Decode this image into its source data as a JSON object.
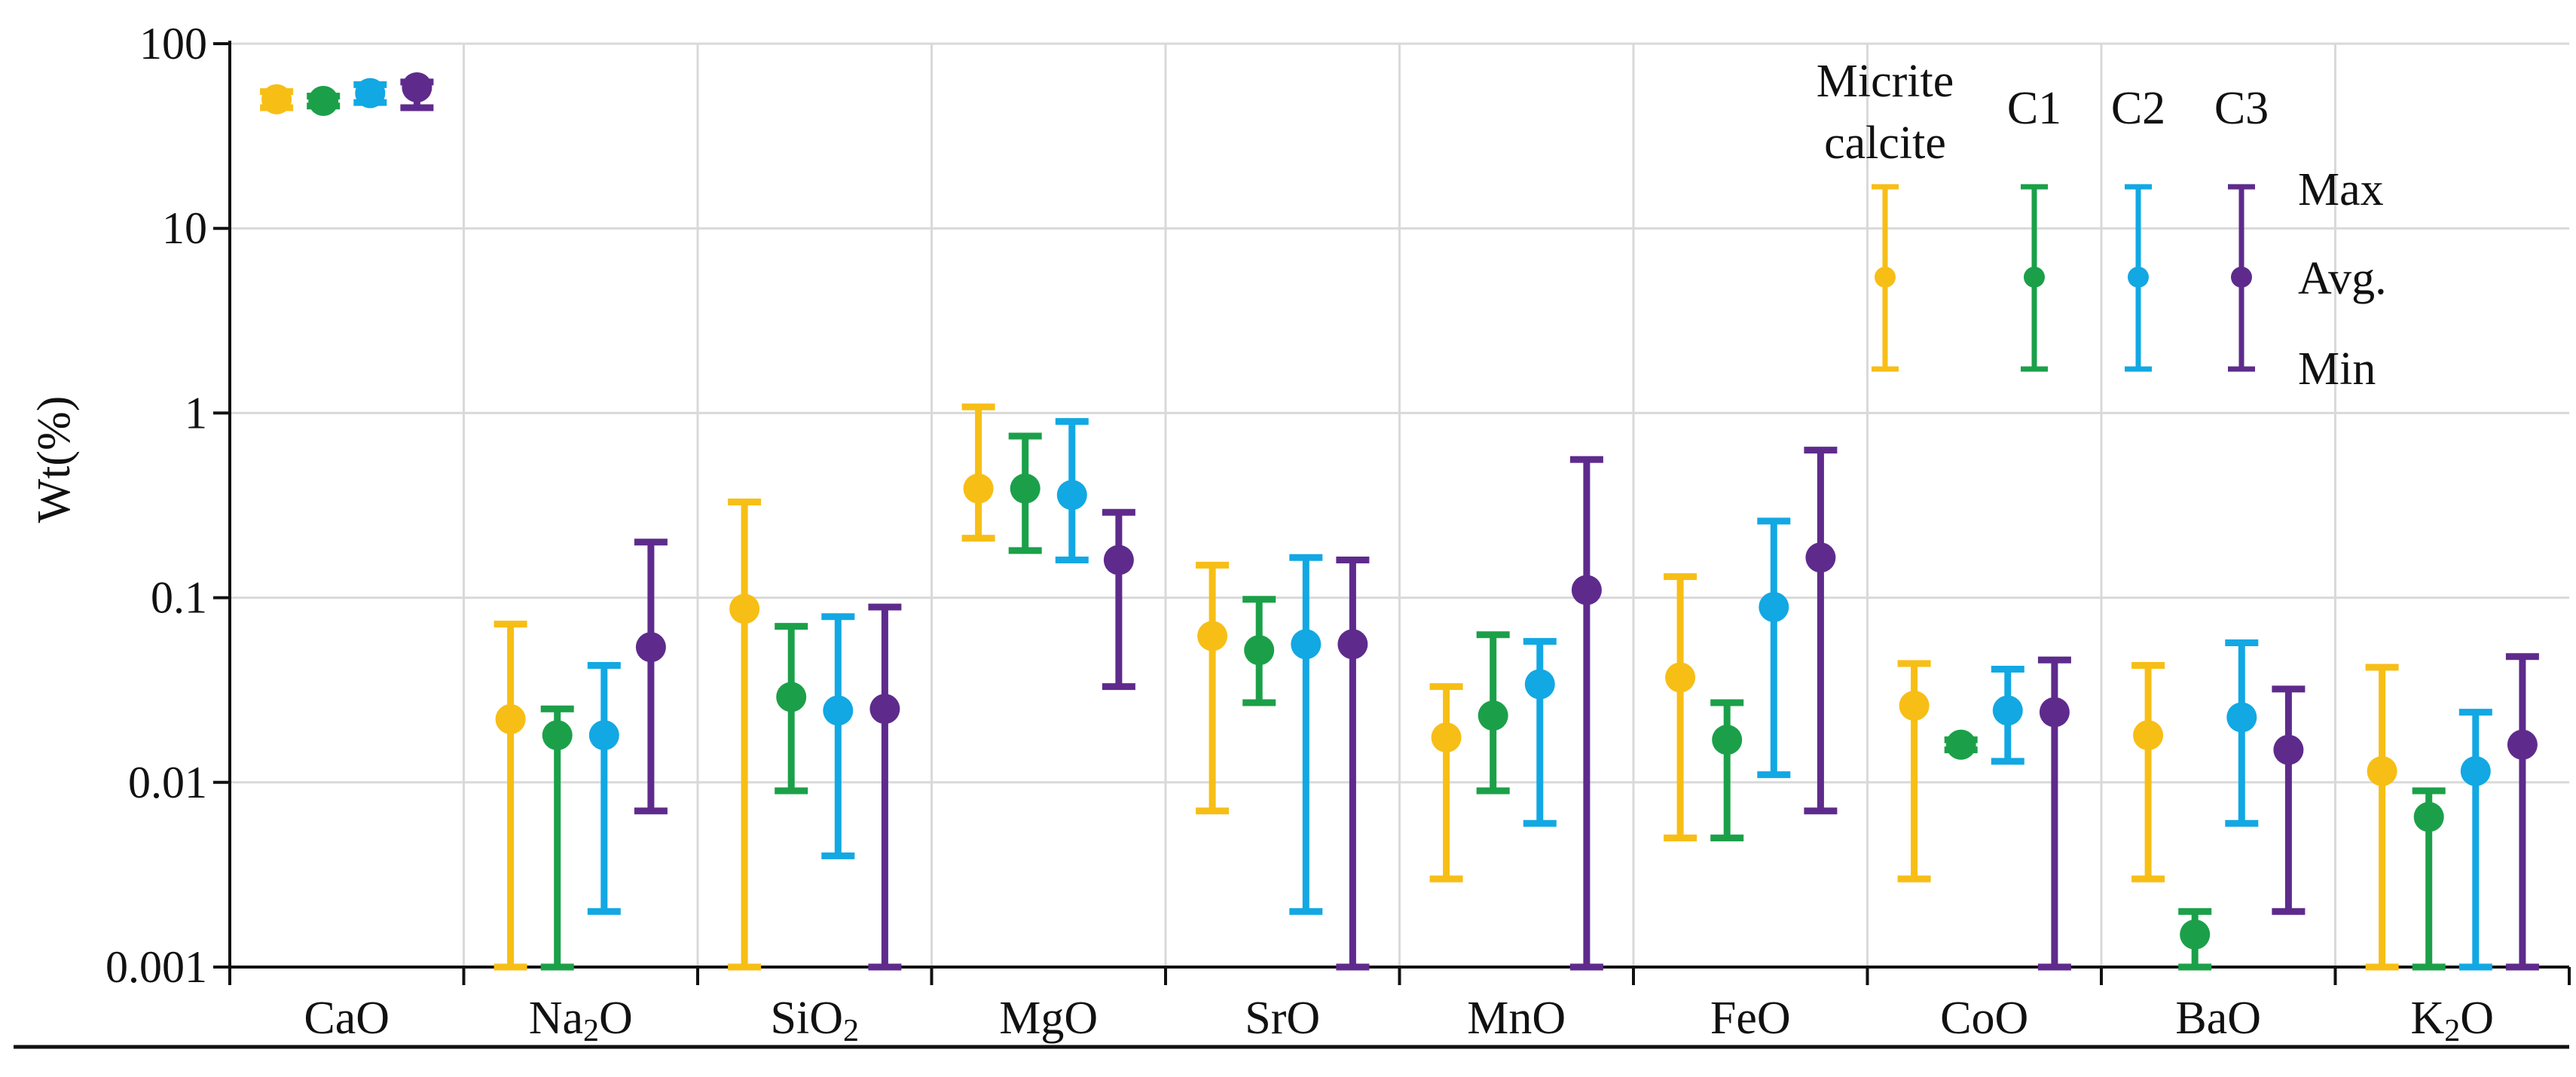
{
  "chart_data": {
    "type": "errorbar",
    "ylabel": "Wt(%)",
    "yscale": "log",
    "ylim": [
      0.001,
      100
    ],
    "yticks": [
      "0.001",
      "0.01",
      "0.1",
      "1",
      "10",
      "100"
    ],
    "grid": true,
    "categories": [
      {
        "base": "CaO",
        "sub": "",
        "tail": ""
      },
      {
        "base": "Na",
        "sub": "2",
        "tail": "O"
      },
      {
        "base": "SiO",
        "sub": "2",
        "tail": ""
      },
      {
        "base": "MgO",
        "sub": "",
        "tail": ""
      },
      {
        "base": "SrO",
        "sub": "",
        "tail": ""
      },
      {
        "base": "MnO",
        "sub": "",
        "tail": ""
      },
      {
        "base": "FeO",
        "sub": "",
        "tail": ""
      },
      {
        "base": "CoO",
        "sub": "",
        "tail": ""
      },
      {
        "base": "BaO",
        "sub": "",
        "tail": ""
      },
      {
        "base": "K",
        "sub": "2",
        "tail": "O"
      }
    ],
    "series": [
      {
        "name": "Micrite calcite",
        "legend_lines": [
          "Micrite",
          "calcite"
        ],
        "color": "#F7BE16",
        "min": [
          45,
          0.001,
          0.001,
          0.21,
          0.007,
          0.003,
          0.005,
          0.003,
          0.003,
          0.001
        ],
        "avg": [
          50,
          0.022,
          0.087,
          0.39,
          0.062,
          0.0175,
          0.037,
          0.026,
          0.018,
          0.0115
        ],
        "max": [
          55,
          0.072,
          0.33,
          1.08,
          0.15,
          0.033,
          0.13,
          0.044,
          0.043,
          0.042
        ]
      },
      {
        "name": "C1",
        "legend_lines": [
          "C1"
        ],
        "color": "#1BA049",
        "min": [
          46,
          0.001,
          0.009,
          0.18,
          0.027,
          0.009,
          0.005,
          0.015,
          0.001,
          0.001
        ],
        "avg": [
          49,
          0.018,
          0.029,
          0.39,
          0.052,
          0.023,
          0.017,
          0.016,
          0.0015,
          0.0065
        ],
        "max": [
          52,
          0.025,
          0.07,
          0.75,
          0.098,
          0.063,
          0.027,
          0.017,
          0.002,
          0.009
        ]
      },
      {
        "name": "C2",
        "legend_lines": [
          "C2"
        ],
        "color": "#12A8E3",
        "min": [
          48,
          0.002,
          0.004,
          0.16,
          0.002,
          0.006,
          0.011,
          0.013,
          0.006,
          0.001
        ],
        "avg": [
          54,
          0.018,
          0.0245,
          0.36,
          0.056,
          0.034,
          0.089,
          0.0245,
          0.0225,
          0.0115
        ],
        "max": [
          60,
          0.043,
          0.079,
          0.9,
          0.165,
          0.058,
          0.26,
          0.041,
          0.057,
          0.024
        ]
      },
      {
        "name": "C3",
        "legend_lines": [
          "C3"
        ],
        "color": "#5E2B8C",
        "min": [
          45,
          0.007,
          0.001,
          0.033,
          0.001,
          0.001,
          0.007,
          0.001,
          0.002,
          0.001
        ],
        "avg": [
          58,
          0.054,
          0.025,
          0.16,
          0.056,
          0.11,
          0.165,
          0.024,
          0.015,
          0.016
        ],
        "max": [
          62,
          0.2,
          0.089,
          0.29,
          0.16,
          0.56,
          0.63,
          0.046,
          0.032,
          0.048
        ]
      }
    ],
    "legend": {
      "placement": "top-right",
      "stat_labels": [
        "Max",
        "Avg.",
        "Min"
      ]
    }
  }
}
